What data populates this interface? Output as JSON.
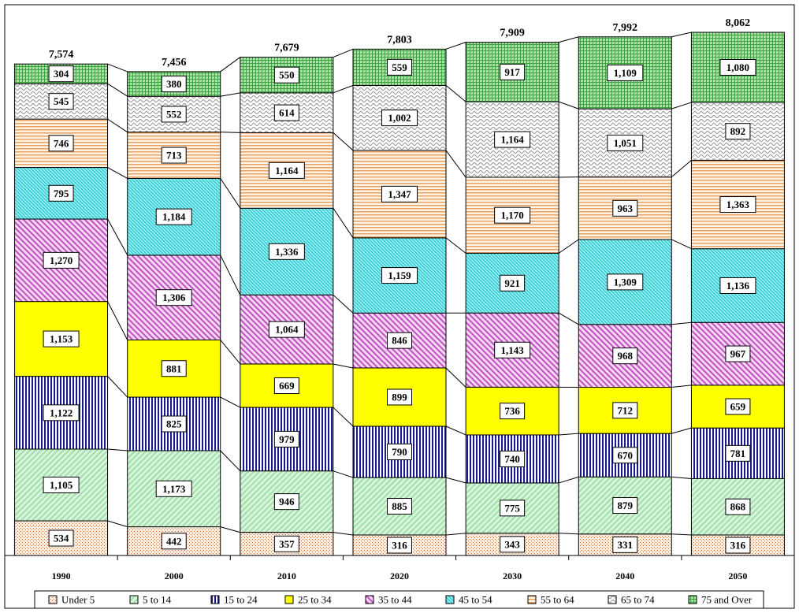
{
  "chart_data": {
    "type": "bar",
    "stacked": true,
    "categories": [
      "1990",
      "2000",
      "2010",
      "2020",
      "2030",
      "2040",
      "2050"
    ],
    "totals": [
      "7,574",
      "7,456",
      "7,679",
      "7,803",
      "7,909",
      "7,992",
      "8,062"
    ],
    "series": [
      {
        "name": "Under 5",
        "values": [
          534,
          442,
          357,
          316,
          343,
          331,
          316
        ],
        "labels": [
          "534",
          "442",
          "357",
          "316",
          "343",
          "331",
          "316"
        ],
        "color": "#ffe0c8",
        "pattern": "dots"
      },
      {
        "name": "5 to 14",
        "values": [
          1105,
          1173,
          946,
          885,
          775,
          879,
          868
        ],
        "labels": [
          "1,105",
          "1,173",
          "946",
          "885",
          "775",
          "879",
          "868"
        ],
        "color": "#9fe0a8",
        "pattern": "diag-up"
      },
      {
        "name": "15 to 24",
        "values": [
          1122,
          825,
          979,
          790,
          740,
          670,
          781
        ],
        "labels": [
          "1,122",
          "825",
          "979",
          "790",
          "740",
          "670",
          "781"
        ],
        "color": "#1a1a8c",
        "pattern": "vlines"
      },
      {
        "name": "25 to 34",
        "values": [
          1153,
          881,
          669,
          899,
          736,
          712,
          659
        ],
        "labels": [
          "1,153",
          "881",
          "669",
          "899",
          "736",
          "712",
          "659"
        ],
        "color": "#ffff00",
        "pattern": "solid"
      },
      {
        "name": "35 to 44",
        "values": [
          1270,
          1306,
          1064,
          846,
          1143,
          968,
          967
        ],
        "labels": [
          "1,270",
          "1,306",
          "1,064",
          "846",
          "1,143",
          "968",
          "967"
        ],
        "color": "#c050c0",
        "pattern": "diag-down"
      },
      {
        "name": "45 to 54",
        "values": [
          795,
          1184,
          1336,
          1159,
          921,
          1309,
          1136
        ],
        "labels": [
          "795",
          "1,184",
          "1,336",
          "1,159",
          "921",
          "1,309",
          "1,136"
        ],
        "color": "#40e0e0",
        "pattern": "diag-fine"
      },
      {
        "name": "55 to 64",
        "values": [
          746,
          713,
          1164,
          1347,
          1170,
          963,
          1363
        ],
        "labels": [
          "746",
          "713",
          "1,164",
          "1,347",
          "1,170",
          "963",
          "1,363"
        ],
        "color": "#e8a060",
        "pattern": "hlines"
      },
      {
        "name": "65 to 74",
        "values": [
          545,
          552,
          614,
          1002,
          1164,
          1051,
          892
        ],
        "labels": [
          "545",
          "552",
          "614",
          "1,002",
          "1,164",
          "1,051",
          "892"
        ],
        "color": "#909090",
        "pattern": "waves"
      },
      {
        "name": "75 and Over",
        "values": [
          304,
          380,
          550,
          559,
          917,
          1109,
          1080
        ],
        "labels": [
          "304",
          "380",
          "550",
          "559",
          "917",
          "1,109",
          "1,080"
        ],
        "color": "#40a040",
        "pattern": "grid"
      }
    ],
    "title": "",
    "xlabel": "",
    "ylabel": "",
    "ylim": [
      0,
      8062
    ],
    "grid": false,
    "legend": "bottom"
  }
}
